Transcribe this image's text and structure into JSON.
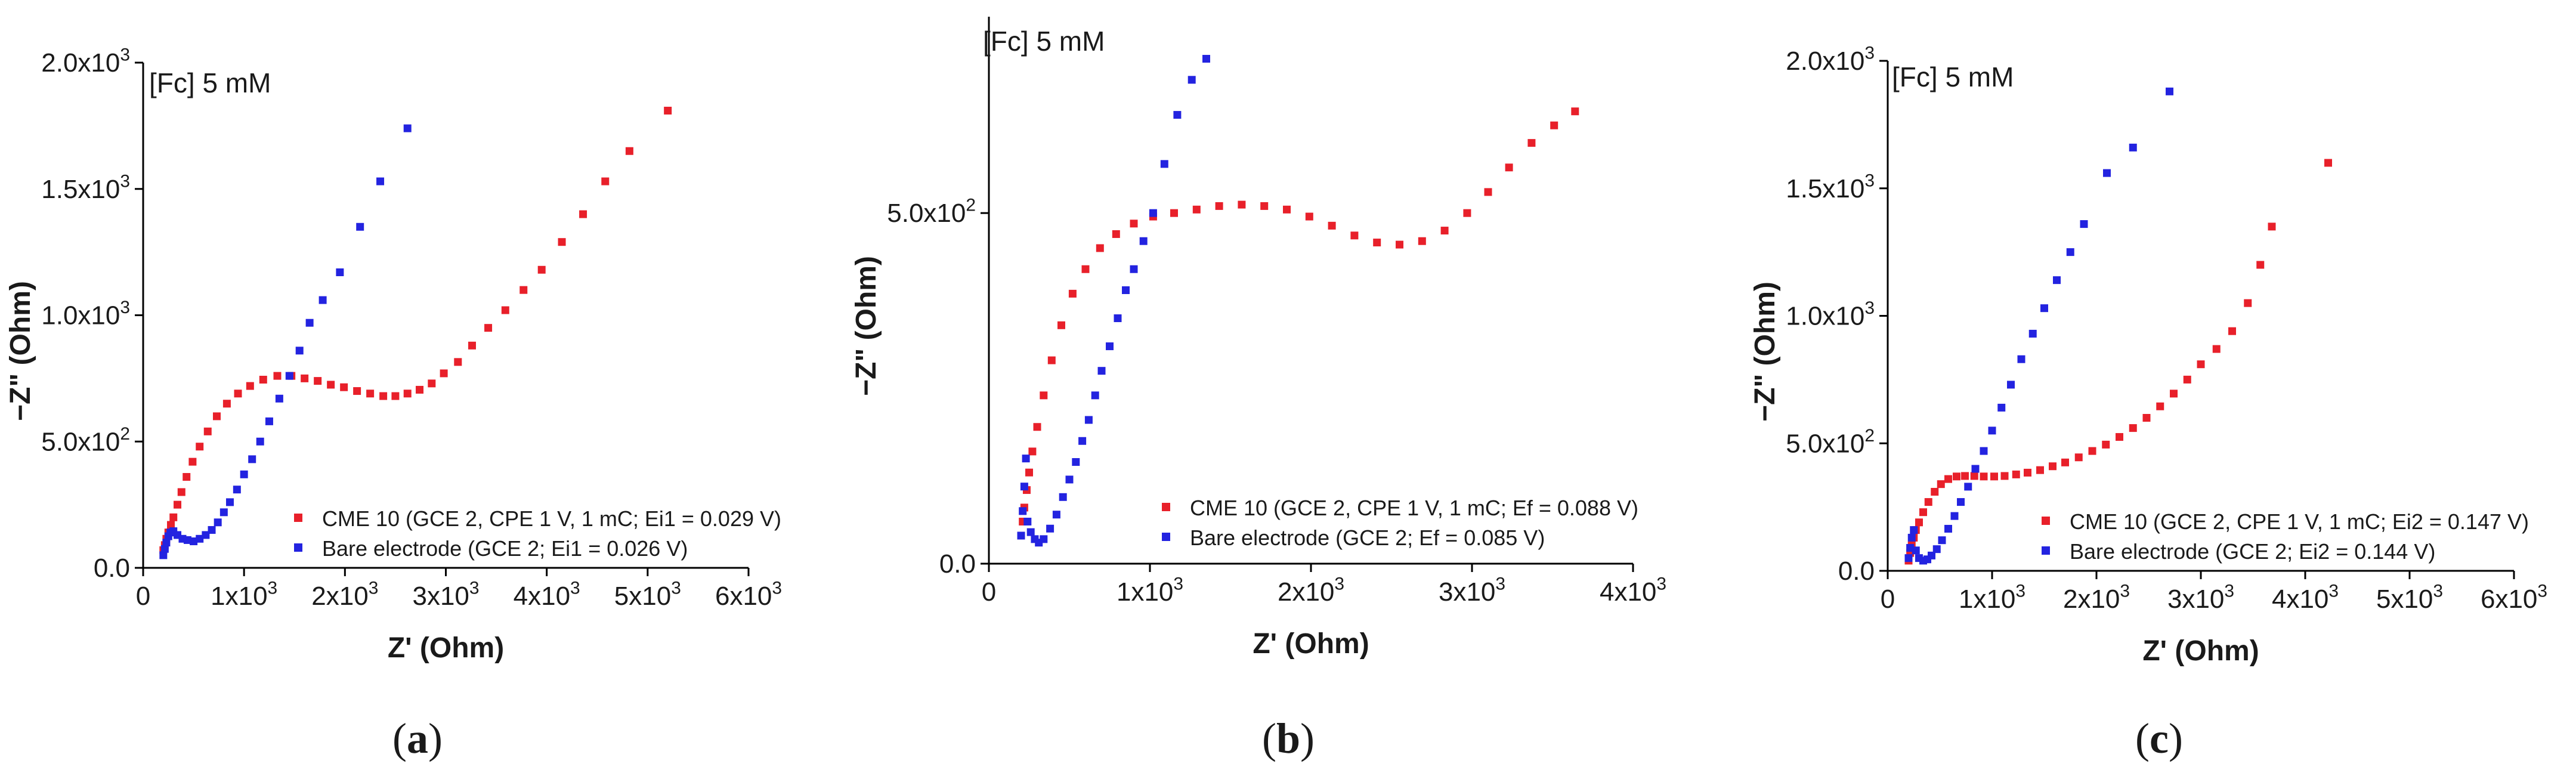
{
  "figure": {
    "panel_labels": [
      "(a)",
      "(b)",
      "(c)"
    ],
    "colors": {
      "red": "#e8202a",
      "blue": "#2323e0",
      "axis": "#000000",
      "text": "#1a1a1a"
    }
  },
  "chart_data": [
    {
      "type": "scatter",
      "id": "a",
      "annotation": "[Fc] 5 mM",
      "xlabel": "Z' (Ohm)",
      "ylabel": "−Z\" (Ohm)",
      "xlim": [
        0,
        6000
      ],
      "ylim": [
        0,
        2000
      ],
      "xticks": [
        0,
        1000,
        2000,
        3000,
        4000,
        5000,
        6000
      ],
      "xtick_labels": [
        "0",
        "1x10^3",
        "2x10^3",
        "3x10^3",
        "4x10^3",
        "5x10^3",
        "6x10^3"
      ],
      "yticks": [
        0,
        500,
        1000,
        1500,
        2000
      ],
      "ytick_labels": [
        "0.0",
        "5.0x10^2",
        "1.0x10^3",
        "1.5x10^3",
        "2.0x10^3"
      ],
      "legend_position": "bottom-right",
      "series": [
        {
          "name": "CME 10 (GCE 2, CPE 1 V, 1 mC; Ei1 = 0.029 V)",
          "color": "red",
          "x": [
            200,
            215,
            230,
            250,
            275,
            300,
            340,
            380,
            430,
            490,
            560,
            640,
            730,
            830,
            940,
            1060,
            1190,
            1330,
            1470,
            1600,
            1730,
            1860,
            1990,
            2120,
            2250,
            2380,
            2500,
            2620,
            2740,
            2860,
            2980,
            3120,
            3260,
            3420,
            3590,
            3770,
            3950,
            4150,
            4360,
            4580,
            4820,
            5200
          ],
          "y": [
            70,
            90,
            115,
            140,
            170,
            200,
            250,
            300,
            360,
            420,
            480,
            540,
            600,
            650,
            690,
            720,
            745,
            760,
            760,
            750,
            740,
            725,
            715,
            700,
            690,
            680,
            680,
            690,
            705,
            730,
            770,
            815,
            880,
            950,
            1020,
            1100,
            1180,
            1290,
            1400,
            1530,
            1650,
            1810
          ]
        },
        {
          "name": "Bare electrode (GCE 2; Ei1 = 0.026 V)",
          "color": "blue",
          "x": [
            200,
            215,
            230,
            250,
            270,
            300,
            340,
            390,
            440,
            500,
            560,
            620,
            680,
            740,
            800,
            860,
            930,
            1000,
            1080,
            1160,
            1250,
            1350,
            1450,
            1550,
            1650,
            1780,
            1950,
            2150,
            2350,
            2620
          ],
          "y": [
            50,
            75,
            100,
            125,
            140,
            145,
            130,
            115,
            110,
            105,
            115,
            130,
            150,
            180,
            220,
            260,
            310,
            370,
            430,
            500,
            580,
            670,
            760,
            860,
            970,
            1060,
            1170,
            1350,
            1530,
            1740
          ]
        }
      ]
    },
    {
      "type": "scatter",
      "id": "b",
      "annotation": "[Fc] 5 mM",
      "xlabel": "Z' (Ohm)",
      "ylabel": "−Z\" (Ohm)",
      "xlim": [
        0,
        4000
      ],
      "ylim": [
        0,
        780
      ],
      "xticks": [
        0,
        1000,
        2000,
        3000,
        4000
      ],
      "xtick_labels": [
        "0",
        "1x10^3",
        "2x10^3",
        "3x10^3",
        "4x10^3"
      ],
      "yticks": [
        0,
        500
      ],
      "ytick_labels": [
        "0.0",
        "5.0x10^2"
      ],
      "legend_position": "bottom-right",
      "series": [
        {
          "name": "CME 10 (GCE 2, CPE 1 V, 1 mC; Ef = 0.088 V)",
          "color": "red",
          "x": [
            200,
            210,
            220,
            235,
            250,
            270,
            300,
            340,
            390,
            450,
            520,
            600,
            690,
            790,
            900,
            1020,
            1150,
            1290,
            1430,
            1570,
            1710,
            1850,
            1990,
            2130,
            2270,
            2410,
            2550,
            2690,
            2830,
            2970,
            3100,
            3230,
            3370,
            3510,
            3640
          ],
          "y": [
            40,
            60,
            80,
            105,
            130,
            160,
            195,
            240,
            290,
            340,
            385,
            420,
            450,
            470,
            485,
            495,
            500,
            505,
            510,
            512,
            510,
            505,
            495,
            482,
            468,
            458,
            455,
            460,
            475,
            500,
            530,
            565,
            600,
            625,
            645
          ]
        },
        {
          "name": "Bare electrode (GCE 2; Ef = 0.085 V)",
          "color": "blue",
          "x": [
            200,
            210,
            220,
            230,
            240,
            260,
            285,
            310,
            340,
            380,
            420,
            460,
            500,
            540,
            580,
            620,
            660,
            700,
            750,
            800,
            850,
            900,
            960,
            1020,
            1090,
            1170,
            1260,
            1350
          ],
          "y": [
            40,
            75,
            110,
            150,
            60,
            45,
            35,
            30,
            35,
            50,
            70,
            95,
            120,
            145,
            175,
            205,
            240,
            275,
            310,
            350,
            390,
            420,
            460,
            500,
            570,
            640,
            690,
            720
          ]
        }
      ]
    },
    {
      "type": "scatter",
      "id": "c",
      "annotation": "[Fc] 5 mM",
      "xlabel": "Z' (Ohm)",
      "ylabel": "−Z\" (Ohm)",
      "xlim": [
        0,
        6000
      ],
      "ylim": [
        0,
        2000
      ],
      "xticks": [
        0,
        1000,
        2000,
        3000,
        4000,
        5000,
        6000
      ],
      "xtick_labels": [
        "0",
        "1x10^3",
        "2x10^3",
        "3x10^3",
        "4x10^3",
        "5x10^3",
        "6x10^3"
      ],
      "yticks": [
        0,
        500,
        1000,
        1500,
        2000
      ],
      "ytick_labels": [
        "0.0",
        "5.0x10^2",
        "1.0x10^3",
        "1.5x10^3",
        "2.0x10^3"
      ],
      "legend_position": "bottom-right",
      "series": [
        {
          "name": "CME 10 (GCE 2, CPE 1 V, 1 mC; Ei2 = 0.147 V)",
          "color": "red",
          "x": [
            200,
            215,
            230,
            250,
            270,
            300,
            340,
            390,
            450,
            510,
            580,
            660,
            740,
            830,
            920,
            1020,
            1120,
            1230,
            1340,
            1460,
            1580,
            1700,
            1830,
            1960,
            2090,
            2220,
            2350,
            2480,
            2610,
            2740,
            2870,
            3000,
            3150,
            3300,
            3450,
            3570,
            3680,
            4220
          ],
          "y": [
            40,
            70,
            100,
            130,
            160,
            190,
            230,
            270,
            310,
            340,
            360,
            370,
            372,
            372,
            370,
            370,
            372,
            378,
            385,
            395,
            410,
            425,
            445,
            470,
            495,
            525,
            560,
            600,
            645,
            695,
            750,
            810,
            870,
            940,
            1050,
            1200,
            1350,
            1600
          ]
        },
        {
          "name": "Bare electrode (GCE 2; Ei2 = 0.144 V)",
          "color": "blue",
          "x": [
            200,
            215,
            230,
            250,
            270,
            300,
            340,
            380,
            420,
            470,
            520,
            580,
            640,
            700,
            770,
            840,
            920,
            1000,
            1090,
            1180,
            1280,
            1390,
            1500,
            1620,
            1750,
            1880,
            2100,
            2350,
            2700
          ],
          "y": [
            50,
            90,
            130,
            160,
            80,
            50,
            40,
            45,
            60,
            85,
            120,
            165,
            215,
            270,
            330,
            400,
            470,
            550,
            640,
            730,
            830,
            930,
            1030,
            1140,
            1250,
            1360,
            1560,
            1660,
            1880
          ]
        }
      ]
    }
  ]
}
